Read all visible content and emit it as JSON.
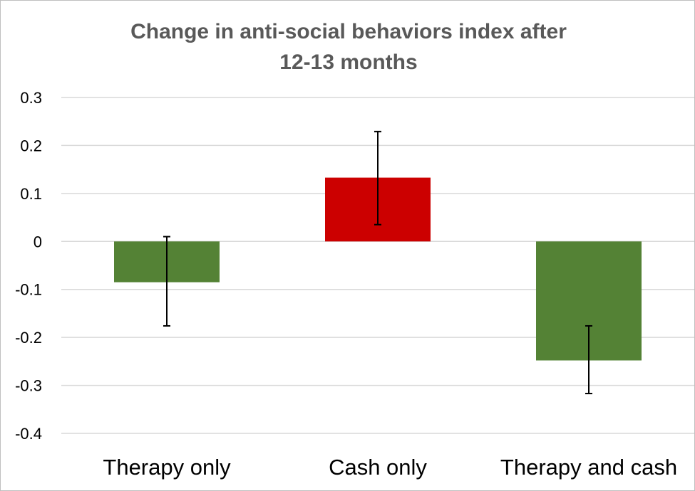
{
  "chart_data": {
    "type": "bar",
    "title_lines": [
      "Change in anti-social behaviors index after",
      "12-13 months"
    ],
    "xlabel": "",
    "ylabel": "",
    "ylim": [
      -0.4,
      0.3
    ],
    "yticks": [
      0.3,
      0.2,
      0.1,
      0,
      -0.1,
      -0.2,
      -0.3,
      -0.4
    ],
    "ytick_labels": [
      "0.3",
      "0.2",
      "0.1",
      "0",
      "-0.1",
      "-0.2",
      "-0.3",
      "-0.4"
    ],
    "grid": true,
    "legend": "none",
    "categories": [
      "Therapy only",
      "Cash only",
      "Therapy and cash"
    ],
    "values": [
      -0.085,
      0.133,
      -0.248
    ],
    "error_bars": [
      {
        "low": -0.176,
        "high": 0.01
      },
      {
        "low": 0.035,
        "high": 0.229
      },
      {
        "low": -0.317,
        "high": -0.176
      }
    ],
    "colors": [
      "#548235",
      "#cc0000",
      "#548235"
    ]
  }
}
